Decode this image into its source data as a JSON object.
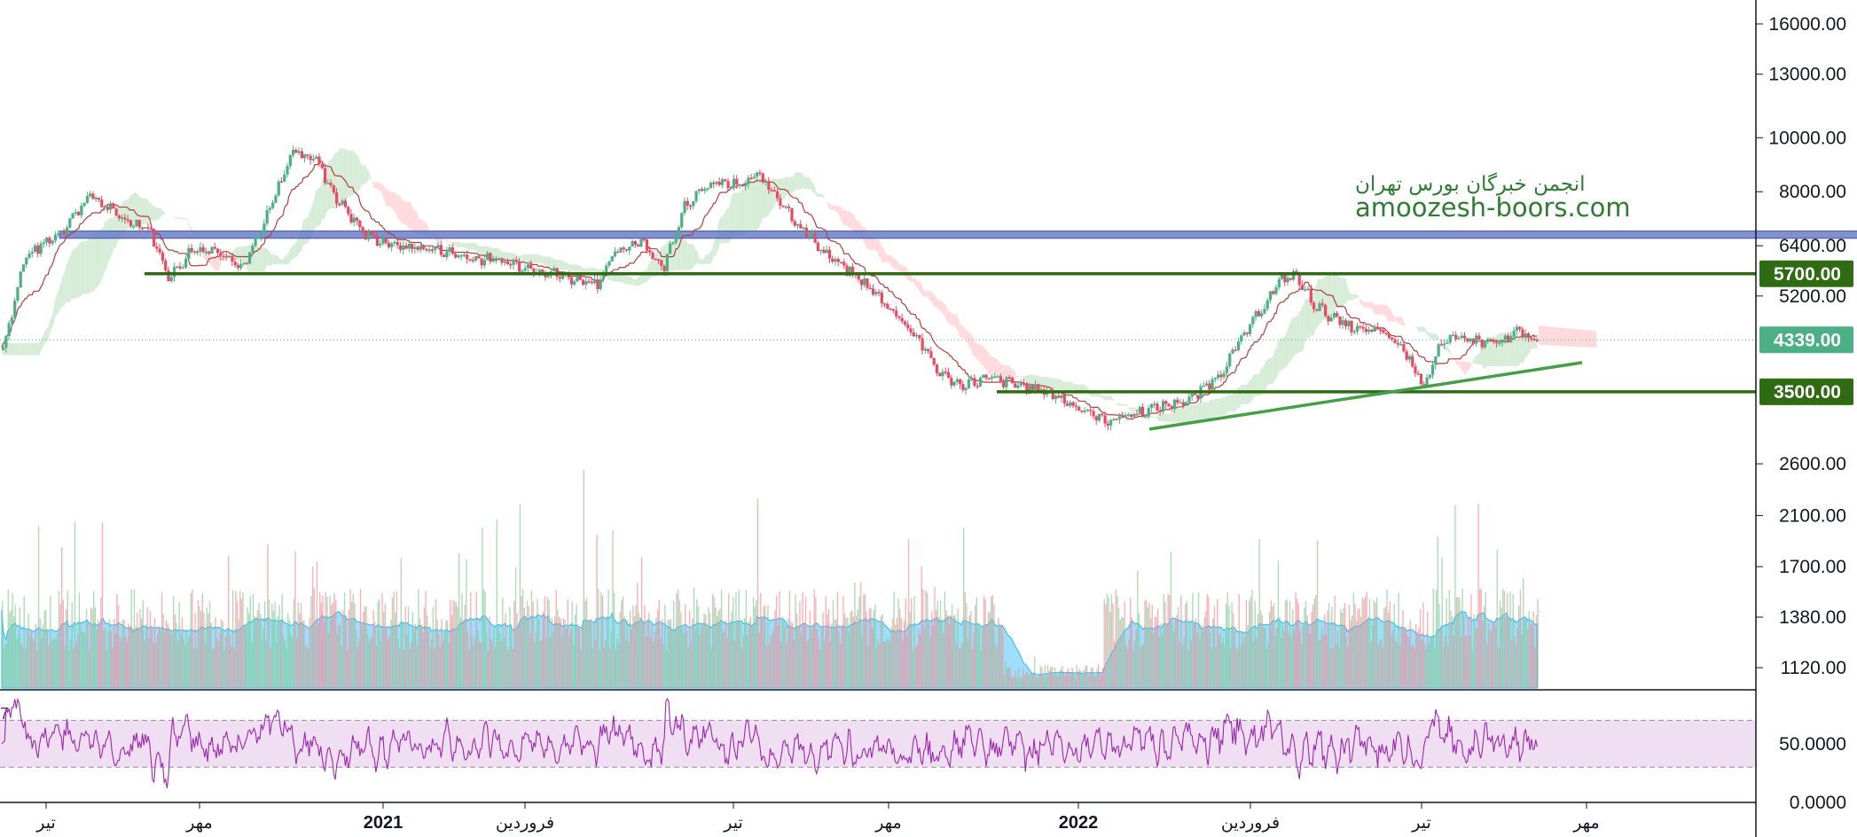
{
  "chart_data": {
    "type": "candlestick",
    "price_scale": "log",
    "y_ticks": [
      "16000.00",
      "13000.00",
      "10000.00",
      "8000.00",
      "6400.00",
      "5200.00",
      "2600.00",
      "2100.00",
      "1700.00",
      "1380.00",
      "1120.00"
    ],
    "y_tick_values": [
      16000,
      13000,
      10000,
      8000,
      6400,
      5200,
      2600,
      2100,
      1700,
      1380,
      1120
    ],
    "price_labels": [
      {
        "text": "5700.00",
        "value": 5700,
        "color": "#2e6b12"
      },
      {
        "text": "4339.00",
        "value": 4339,
        "color": "#4caf86"
      },
      {
        "text": "3500.00",
        "value": 3500,
        "color": "#2e6b12"
      }
    ],
    "rsi": {
      "ticks": [
        "50.0000",
        "0.0000"
      ],
      "tick_values": [
        50,
        0
      ],
      "band": [
        30,
        70
      ],
      "left_stub": "7",
      "color": "#9c27b0"
    },
    "time_labels": [
      {
        "text": "تیر",
        "year": false
      },
      {
        "text": "مهر",
        "year": false
      },
      {
        "text": "2021",
        "year": true
      },
      {
        "text": "فروردین",
        "year": false
      },
      {
        "text": "تیر",
        "year": false
      },
      {
        "text": "مهر",
        "year": false
      },
      {
        "text": "2022",
        "year": true
      },
      {
        "text": "فروردین",
        "year": false
      },
      {
        "text": "تیر",
        "year": false
      },
      {
        "text": "مهر",
        "year": false
      }
    ],
    "anchor_prices": [
      [
        0,
        4200
      ],
      [
        15,
        6100
      ],
      [
        40,
        6800
      ],
      [
        60,
        7900
      ],
      [
        80,
        7200
      ],
      [
        100,
        6900
      ],
      [
        115,
        5600
      ],
      [
        130,
        6300
      ],
      [
        150,
        6300
      ],
      [
        165,
        5800
      ],
      [
        180,
        7000
      ],
      [
        200,
        9500
      ],
      [
        215,
        9200
      ],
      [
        230,
        7800
      ],
      [
        250,
        6700
      ],
      [
        270,
        6400
      ],
      [
        300,
        6300
      ],
      [
        320,
        6100
      ],
      [
        345,
        6000
      ],
      [
        370,
        5800
      ],
      [
        390,
        5600
      ],
      [
        410,
        5500
      ],
      [
        420,
        6100
      ],
      [
        440,
        6600
      ],
      [
        455,
        5800
      ],
      [
        470,
        7600
      ],
      [
        490,
        8300
      ],
      [
        510,
        8200
      ],
      [
        520,
        8600
      ],
      [
        535,
        7800
      ],
      [
        550,
        6900
      ],
      [
        570,
        6100
      ],
      [
        590,
        5600
      ],
      [
        610,
        5000
      ],
      [
        630,
        4400
      ],
      [
        645,
        3800
      ],
      [
        660,
        3600
      ],
      [
        680,
        3700
      ],
      [
        700,
        3600
      ],
      [
        720,
        3500
      ],
      [
        740,
        3300
      ],
      [
        760,
        3100
      ],
      [
        780,
        3200
      ],
      [
        800,
        3300
      ],
      [
        820,
        3400
      ],
      [
        840,
        3800
      ],
      [
        860,
        4600
      ],
      [
        880,
        5500
      ],
      [
        890,
        5700
      ],
      [
        905,
        5000
      ],
      [
        920,
        4700
      ],
      [
        935,
        4500
      ],
      [
        950,
        4500
      ],
      [
        965,
        4200
      ],
      [
        980,
        3600
      ],
      [
        990,
        4200
      ],
      [
        1005,
        4400
      ],
      [
        1020,
        4300
      ],
      [
        1035,
        4300
      ],
      [
        1045,
        4500
      ],
      [
        1055,
        4339
      ]
    ],
    "drawings": {
      "resistance_zone": {
        "low": 6600,
        "high": 6800
      },
      "horizontal_lines": [
        5700,
        3500
      ],
      "trendline": {
        "from_price": 3000,
        "to_price": 3950
      }
    },
    "watermark": {
      "line1": "انجمن خبرگان بورس تهران",
      "line2": "amoozesh-boors.com"
    },
    "colors": {
      "up": "#26a69a",
      "down": "#ef5350",
      "up_body": "#4caf86",
      "down_body": "#e84a63",
      "kijun": "#b0413e",
      "cloud_bull": "#c8e6c9",
      "cloud_bear": "#ffcdd2",
      "volume_area": "#4fc3f7",
      "zone": "#6b7fc4",
      "level_line": "#2e6b12"
    }
  }
}
